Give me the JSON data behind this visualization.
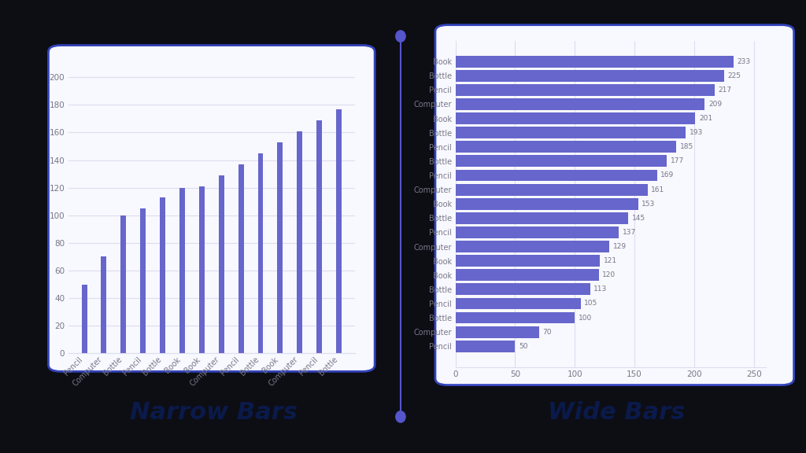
{
  "left_categories": [
    "Pencil",
    "Computer",
    "Bottle",
    "Pencil",
    "Bottle",
    "Book",
    "Book",
    "Computer",
    "Pencil",
    "Bottle",
    "Book",
    "Computer",
    "Pencil",
    "Bottle"
  ],
  "left_values": [
    50,
    70,
    100,
    105,
    113,
    120,
    121,
    129,
    137,
    145,
    153,
    161,
    169,
    177
  ],
  "right_categories": [
    "Book",
    "Bottle",
    "Pencil",
    "Computer",
    "Book",
    "Bottle",
    "Pencil",
    "Bottle",
    "Pencil",
    "Computer",
    "Book",
    "Bottle",
    "Pencil",
    "Computer",
    "Book",
    "Book",
    "Bottle",
    "Pencil",
    "Bottle",
    "Computer",
    "Pencil"
  ],
  "right_values": [
    233,
    225,
    217,
    209,
    201,
    193,
    185,
    177,
    169,
    161,
    153,
    145,
    137,
    129,
    121,
    120,
    113,
    105,
    100,
    70,
    50
  ],
  "bar_color": "#6666cc",
  "title_left": "Narrow Bars",
  "title_right": "Wide Bars",
  "title_color": "#0a1a4a",
  "background_color": "#0d0d14",
  "chart_bg": "#f8f8ff",
  "chart_border_color": "#3344bb",
  "grid_color": "#ddddee",
  "tick_color": "#777788",
  "divider_color": "#5555cc"
}
